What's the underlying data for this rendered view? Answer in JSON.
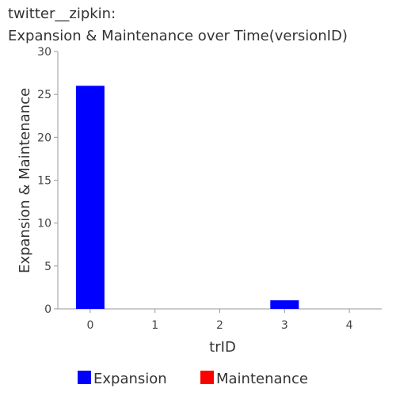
{
  "chart_data": {
    "type": "bar",
    "title_lines": [
      "twitter__zipkin:",
      "Expansion & Maintenance over Time(versionID)"
    ],
    "xlabel": "trID",
    "ylabel": "Expansion & Maintenance",
    "categories": [
      0,
      1,
      2,
      3,
      4
    ],
    "ylim": [
      0,
      30
    ],
    "yticks": [
      0,
      5,
      10,
      15,
      20,
      25,
      30
    ],
    "series": [
      {
        "name": "Expansion",
        "color": "#0000ff",
        "values": [
          26,
          0,
          0,
          1,
          0
        ]
      },
      {
        "name": "Maintenance",
        "color": "#ff0000",
        "values": [
          0,
          0,
          0,
          0,
          0
        ]
      }
    ],
    "grid": false,
    "legend_position": "bottom"
  }
}
